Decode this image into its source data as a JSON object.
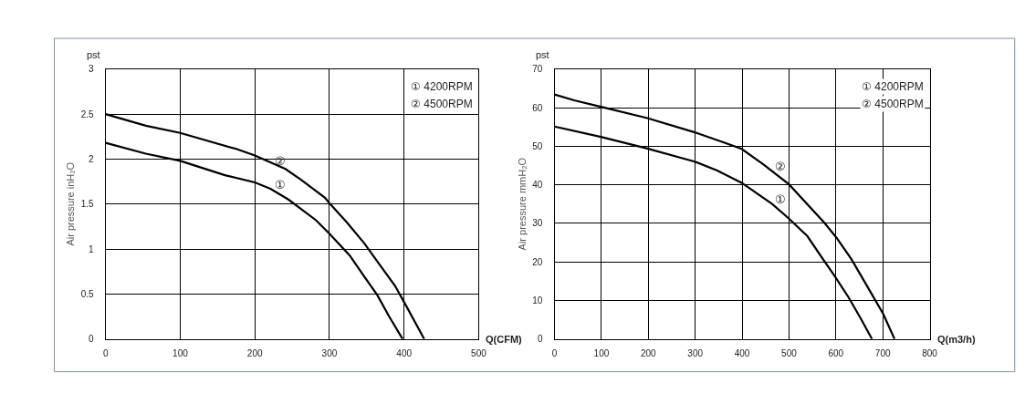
{
  "chart_data": [
    {
      "type": "line",
      "xlabel": "Q(CFM)",
      "ylabel": "Air pressure inH₂O",
      "annotations": [
        "pst",
        "① 4200RPM",
        "② 4500RPM",
        "②",
        "①"
      ],
      "series": [
        {
          "color": "#000000",
          "x": [
            0,
            54,
            100,
            160,
            200,
            221,
            245,
            282,
            300,
            327,
            347,
            364,
            380,
            398
          ],
          "values": [
            2.18,
            2.06,
            1.98,
            1.82,
            1.74,
            1.67,
            1.55,
            1.32,
            1.17,
            0.93,
            0.69,
            0.49,
            0.25,
            0
          ]
        },
        {
          "color": "#000000",
          "x": [
            0,
            54,
            100,
            176,
            200,
            241,
            262,
            294,
            300,
            323,
            347,
            367,
            388,
            404,
            427
          ],
          "values": [
            2.5,
            2.37,
            2.29,
            2.11,
            2.04,
            1.89,
            1.77,
            1.57,
            1.51,
            1.3,
            1.06,
            0.83,
            0.59,
            0.35,
            0
          ]
        }
      ],
      "xlim": [
        0,
        500
      ],
      "xticks": [
        0,
        100,
        200,
        300,
        400,
        500
      ],
      "ylim": [
        0,
        3
      ],
      "yticks": [
        0,
        0.5,
        1,
        1.5,
        2,
        2.5,
        3
      ],
      "grid": true,
      "line_style": "solid"
    },
    {
      "type": "line",
      "xlabel": "Q(m3/h)",
      "ylabel": "Air pressure mmH₂O",
      "annotations": [
        "pst",
        "① 4200RPM",
        "② 4500RPM",
        "②",
        "①"
      ],
      "series": [
        {
          "color": "#000000",
          "x": [
            0,
            99,
            198,
            299,
            347,
            399,
            464,
            500,
            539,
            568,
            597,
            627,
            653,
            677
          ],
          "values": [
            55.1,
            52.4,
            49.4,
            46.0,
            43.7,
            40.5,
            35.0,
            31.2,
            26.7,
            21.5,
            16.4,
            10.8,
            5.3,
            0
          ]
        },
        {
          "color": "#000000",
          "x": [
            0,
            42,
            99,
            198,
            299,
            360,
            399,
            445,
            500,
            575,
            601,
            633,
            669,
            701,
            725
          ],
          "values": [
            63.4,
            61.9,
            60.2,
            57.3,
            53.6,
            51.0,
            49.3,
            45.3,
            40.1,
            30.2,
            26.3,
            20.7,
            13.2,
            6.5,
            0
          ]
        }
      ],
      "xlim": [
        0,
        800
      ],
      "xticks": [
        0,
        100,
        200,
        300,
        400,
        500,
        600,
        700,
        800
      ],
      "ylim": [
        0,
        70
      ],
      "yticks": [
        0,
        10,
        20,
        30,
        40,
        50,
        60,
        70
      ],
      "grid": true,
      "line_style": "solid"
    }
  ]
}
